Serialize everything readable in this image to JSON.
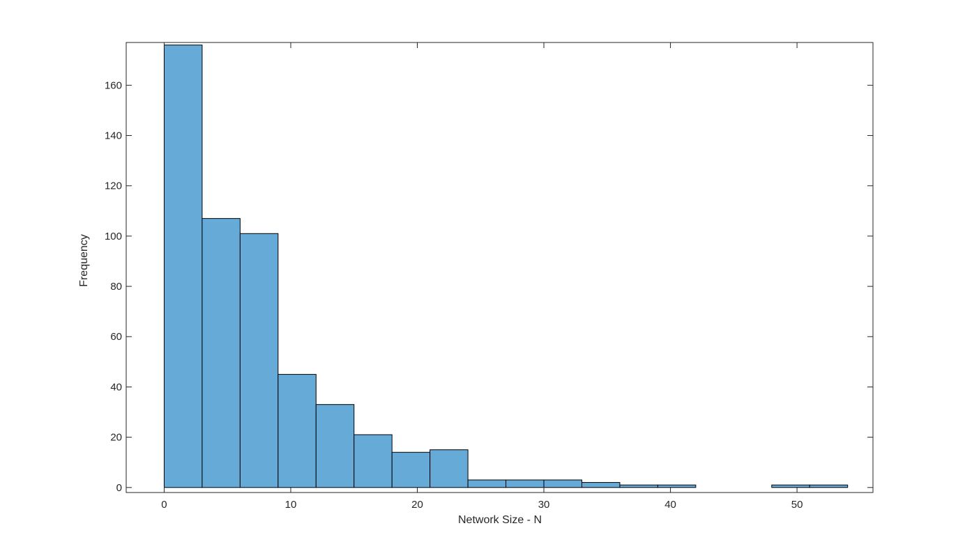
{
  "chart_data": {
    "type": "bar",
    "histogram": true,
    "title": "",
    "xlabel": "Network Size - N",
    "ylabel": "Frequency",
    "xlim": [
      -3,
      56
    ],
    "ylim": [
      -2,
      177
    ],
    "xticks": [
      0,
      10,
      20,
      30,
      40,
      50
    ],
    "yticks": [
      0,
      20,
      40,
      60,
      80,
      100,
      120,
      140,
      160
    ],
    "bin_edges": [
      0,
      3,
      6,
      9,
      12,
      15,
      18,
      21,
      24,
      27,
      30,
      33,
      36,
      39,
      42,
      45,
      48,
      51,
      54
    ],
    "values": [
      176,
      107,
      101,
      45,
      33,
      21,
      14,
      15,
      3,
      3,
      3,
      2,
      1,
      1,
      0,
      0,
      1,
      1
    ],
    "grid": false,
    "legend": "none",
    "bar_color": "#66aad8",
    "edge_color": "#000000",
    "axis_color": "#262626"
  }
}
